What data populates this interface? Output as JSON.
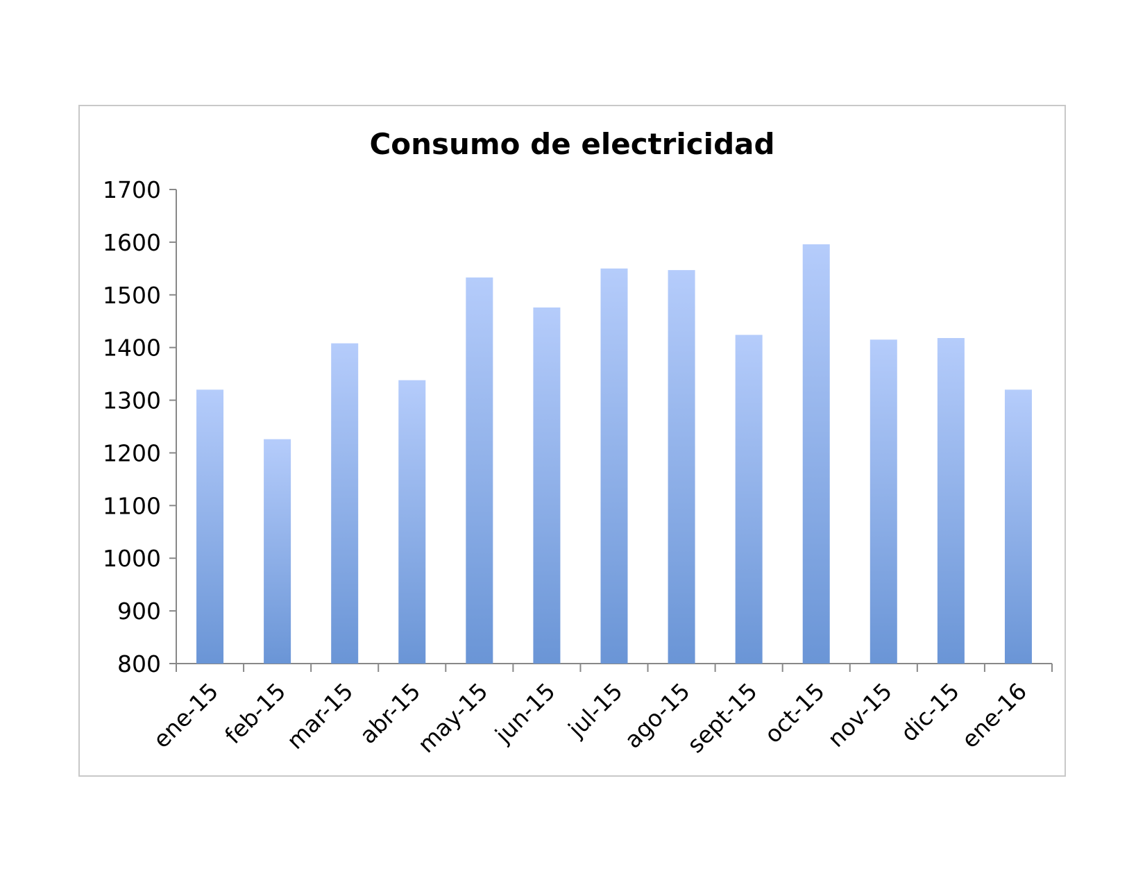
{
  "chart_data": {
    "type": "bar",
    "title": "Consumo de electricidad",
    "xlabel": "",
    "ylabel": "",
    "categories": [
      "ene-15",
      "feb-15",
      "mar-15",
      "abr-15",
      "may-15",
      "jun-15",
      "jul-15",
      "ago-15",
      "sept-15",
      "oct-15",
      "nov-15",
      "dic-15",
      "ene-16"
    ],
    "values": [
      1320,
      1226,
      1408,
      1338,
      1533,
      1476,
      1550,
      1547,
      1424,
      1596,
      1415,
      1418,
      1320
    ],
    "ylim": [
      800,
      1700
    ],
    "yticks": [
      800,
      900,
      1000,
      1100,
      1200,
      1300,
      1400,
      1500,
      1600,
      1700
    ],
    "grid": false,
    "legend": "none",
    "colors": {
      "bar_top": "#b5ccfb",
      "bar_bottom": "#6a95d6",
      "axis": "#888888"
    }
  }
}
